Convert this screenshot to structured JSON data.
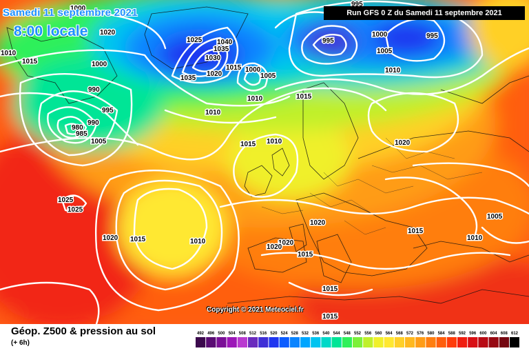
{
  "header": {
    "date_title": "Samedi 11 septembre 2021",
    "time_title": "8:00 locale",
    "run_info": "Run GFS 0 Z du Samedi 11 septembre 2021"
  },
  "footer": {
    "title": "Géop. Z500 & pression au sol",
    "subtitle": "(+ 6h)",
    "copyright": "Copyright © 2021 Meteociel.fr"
  },
  "legend": {
    "values": [
      "492",
      "496",
      "500",
      "504",
      "508",
      "512",
      "516",
      "520",
      "524",
      "528",
      "532",
      "536",
      "540",
      "544",
      "548",
      "552",
      "556",
      "560",
      "564",
      "568",
      "572",
      "576",
      "580",
      "584",
      "588",
      "592",
      "596",
      "600",
      "604",
      "608",
      "612"
    ],
    "colors": [
      "#3c0a4d",
      "#5a0c73",
      "#7a0f96",
      "#9c16b8",
      "#b93ad0",
      "#6a2bbd",
      "#3f2fd6",
      "#1f36f0",
      "#0b5cff",
      "#0a84ff",
      "#00a6ff",
      "#00c4f0",
      "#00d9c8",
      "#00e596",
      "#2ff05a",
      "#7cf03a",
      "#bff02a",
      "#f0f02a",
      "#ffe830",
      "#ffd028",
      "#ffb81e",
      "#ff9c16",
      "#ff7e10",
      "#ff5e0c",
      "#ff3c0a",
      "#f01e10",
      "#d80f14",
      "#b80a14",
      "#960812",
      "#740610",
      "#000000"
    ]
  },
  "pressure_labels": [
    {
      "text": "1000"
    },
    {
      "text": "1010"
    },
    {
      "text": "1020"
    },
    {
      "text": "1015"
    },
    {
      "text": "1000"
    },
    {
      "text": "990"
    },
    {
      "text": "995"
    },
    {
      "text": "990"
    },
    {
      "text": "985"
    },
    {
      "text": "980"
    },
    {
      "text": "1005"
    },
    {
      "text": "1025"
    },
    {
      "text": "1035"
    },
    {
      "text": "1040"
    },
    {
      "text": "1030"
    },
    {
      "text": "1035"
    },
    {
      "text": "1020"
    },
    {
      "text": "1015"
    },
    {
      "text": "1000"
    },
    {
      "text": "1005"
    },
    {
      "text": "1010"
    },
    {
      "text": "1010"
    },
    {
      "text": "995"
    },
    {
      "text": "995"
    },
    {
      "text": "1000"
    },
    {
      "text": "995"
    },
    {
      "text": "1005"
    },
    {
      "text": "1010"
    },
    {
      "text": "1015"
    },
    {
      "text": "1015"
    },
    {
      "text": "1010"
    },
    {
      "text": "1020"
    },
    {
      "text": "1025"
    },
    {
      "text": "1025"
    },
    {
      "text": "1020"
    },
    {
      "text": "1015"
    },
    {
      "text": "1010"
    },
    {
      "text": "1020"
    },
    {
      "text": "1020"
    },
    {
      "text": "1015"
    },
    {
      "text": "1015"
    },
    {
      "text": "1015"
    },
    {
      "text": "1005"
    },
    {
      "text": "1010"
    },
    {
      "text": "1015"
    },
    {
      "text": "1020"
    }
  ]
}
